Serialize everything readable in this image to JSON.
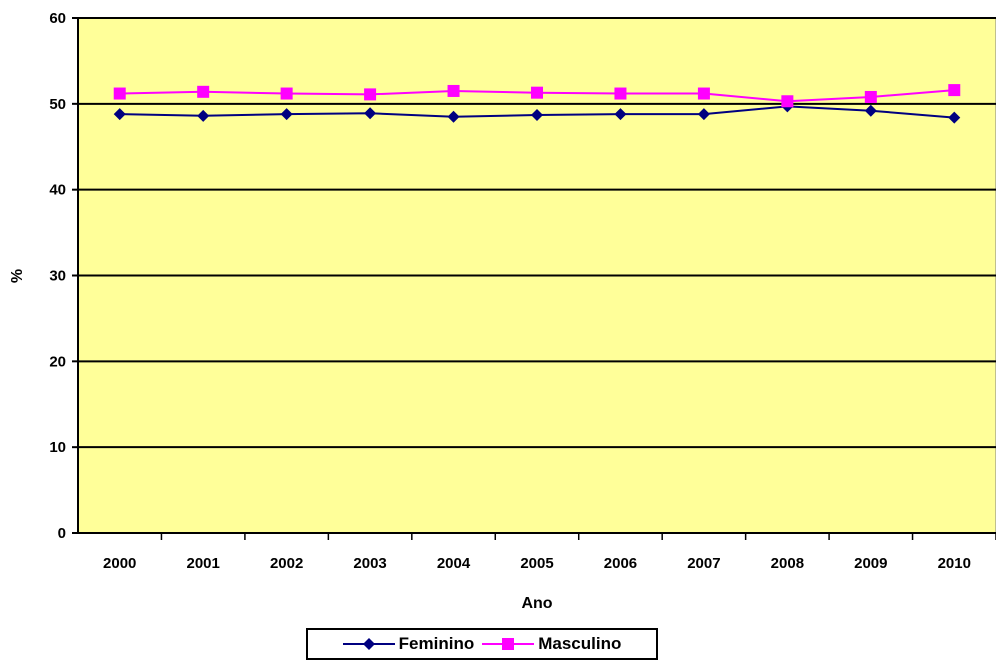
{
  "chart_data": {
    "type": "line",
    "x": [
      "2000",
      "2001",
      "2002",
      "2003",
      "2004",
      "2005",
      "2006",
      "2007",
      "2008",
      "2009",
      "2010"
    ],
    "series": [
      {
        "name": "Feminino",
        "values": [
          48.8,
          48.6,
          48.8,
          48.9,
          48.5,
          48.7,
          48.8,
          48.8,
          49.7,
          49.2,
          48.4
        ],
        "color": "#000080",
        "marker": "diamond"
      },
      {
        "name": "Masculino",
        "values": [
          51.2,
          51.4,
          51.2,
          51.1,
          51.5,
          51.3,
          51.2,
          51.2,
          50.3,
          50.8,
          51.6
        ],
        "color": "#ff00ff",
        "marker": "square"
      }
    ],
    "xlabel": "Ano",
    "ylabel": "%",
    "ylim": [
      0,
      60
    ],
    "yticks": [
      "0",
      "10",
      "20",
      "30",
      "40",
      "50",
      "60"
    ],
    "grid": "horizontal",
    "plot_background": "#ffff99",
    "legend_position": "bottom"
  }
}
